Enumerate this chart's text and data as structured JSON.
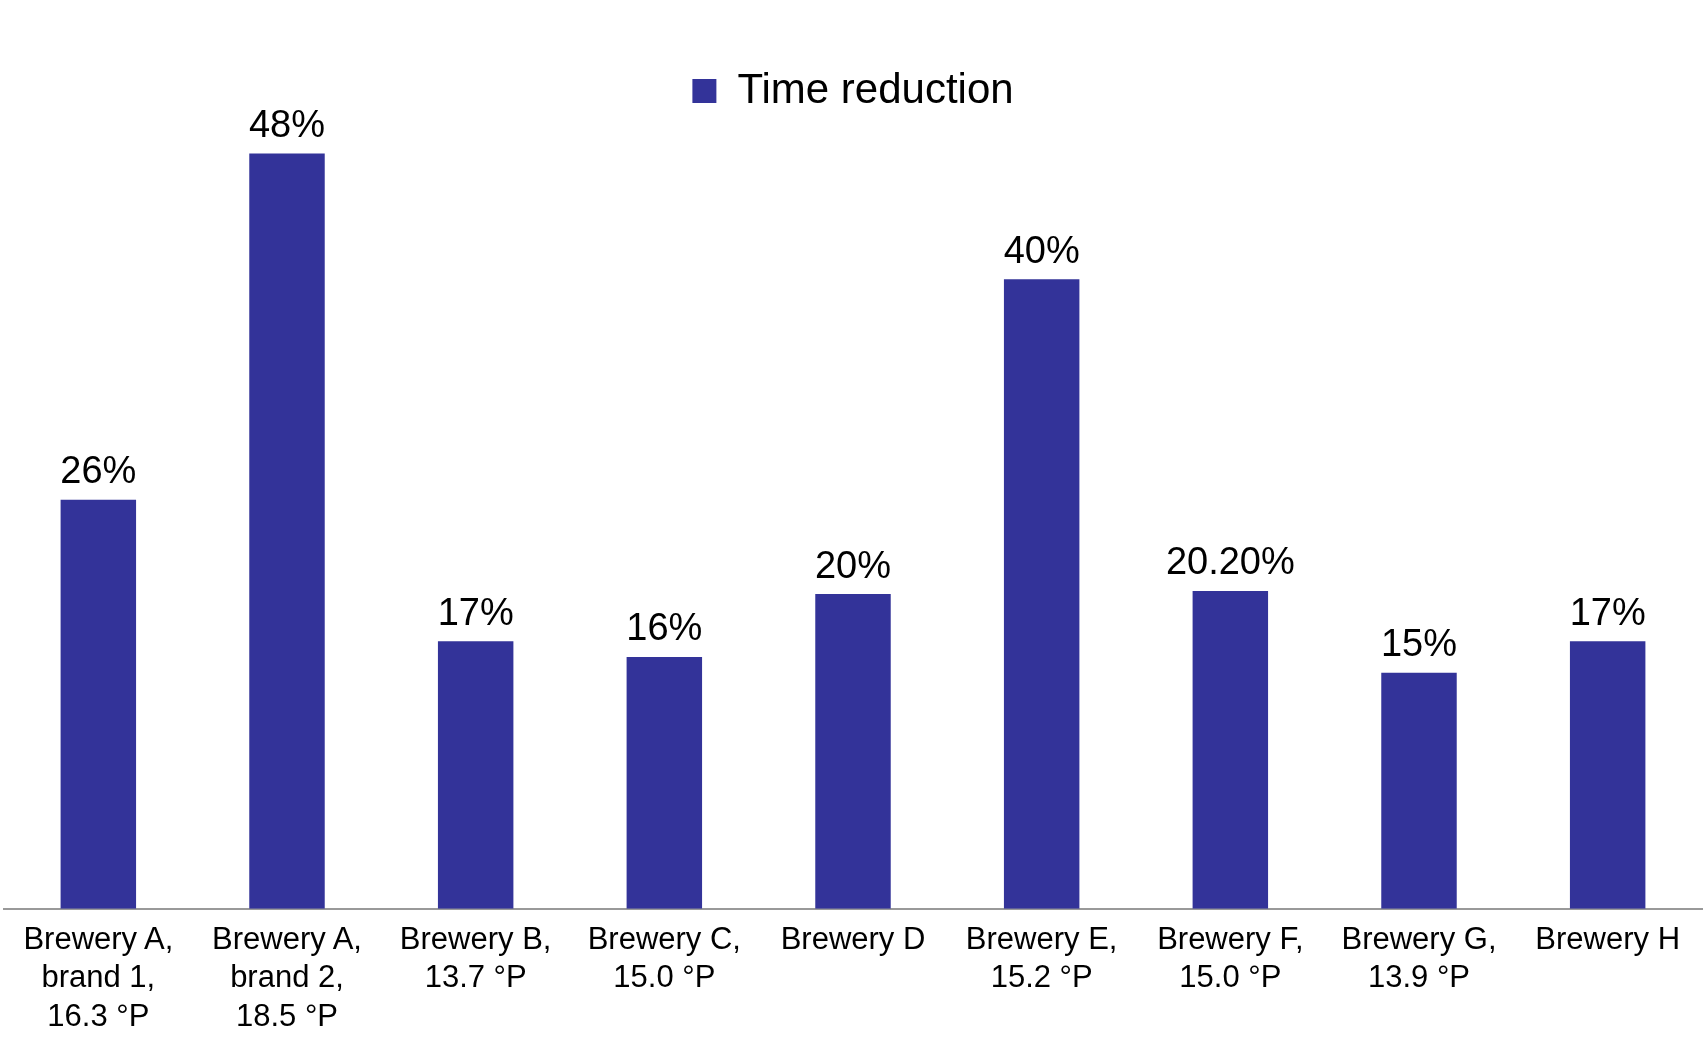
{
  "chart_data": {
    "type": "bar",
    "categories": [
      "Brewery A, brand 1, 16.3 °P",
      "Brewery A, brand 2, 18.5 °P",
      "Brewery B, 13.7 °P",
      "Brewery C, 15.0 °P",
      "Brewery D",
      "Brewery E, 15.2 °P",
      "Brewery F, 15.0 °P",
      "Brewery G, 13.9 °P",
      "Brewery H"
    ],
    "series": [
      {
        "name": "Time reduction",
        "color": "#333399",
        "values": [
          26,
          48,
          17,
          16,
          20,
          40,
          20.2,
          15,
          17
        ],
        "value_labels": [
          "26%",
          "48%",
          "17%",
          "16%",
          "20%",
          "40%",
          "20.20%",
          "15%",
          "17%"
        ]
      }
    ],
    "legend": "top",
    "grid": false,
    "tick_labels": "x"
  }
}
